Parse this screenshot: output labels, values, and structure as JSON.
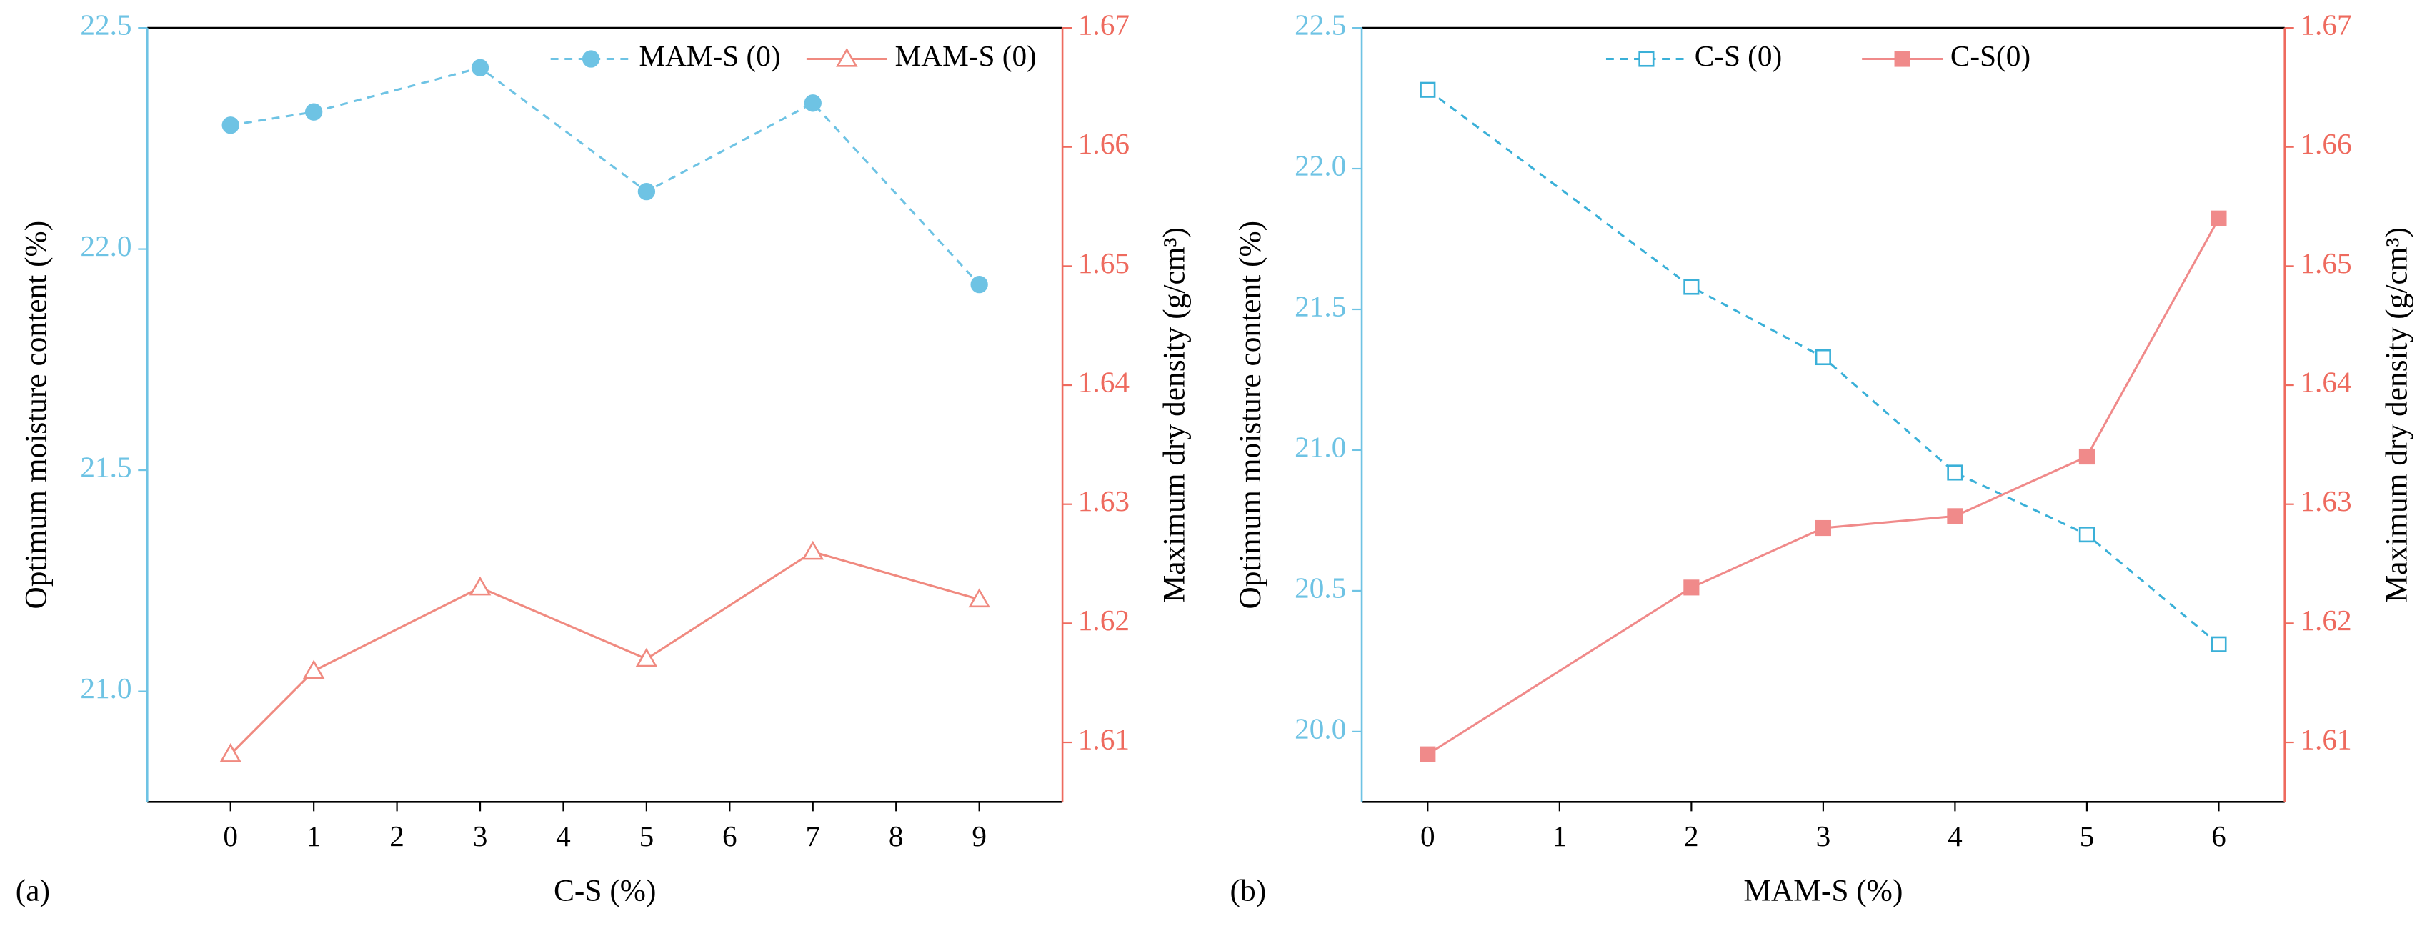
{
  "chart_data": [
    {
      "type": "line",
      "panel_label": "(a)",
      "xlabel": "C-S (%)",
      "ylabel": "Optimum moisture content (%)",
      "y2label": "Maximum dry density (g/cm³)",
      "x": [
        0,
        1,
        3,
        5,
        7,
        9
      ],
      "xlim": [
        -1,
        10
      ],
      "xticks": [
        0,
        1,
        2,
        3,
        4,
        5,
        6,
        7,
        8,
        9
      ],
      "ylim": [
        20.75,
        22.5
      ],
      "yticks": [
        {
          "value": 21,
          "label": "21.0"
        },
        21.5,
        {
          "value": 22,
          "label": "22.0"
        },
        22.5
      ],
      "y2lim": [
        1.605,
        1.67
      ],
      "y2ticks": [
        1.61,
        1.62,
        1.63,
        1.64,
        1.65,
        1.66,
        1.67
      ],
      "legend": "upper right",
      "series": [
        {
          "name": "MAM-S (0)",
          "color": "#6ec3e4",
          "marker": "circle",
          "dash": true,
          "values": [
            22.28,
            22.31,
            22.41,
            22.13,
            22.33,
            21.92
          ]
        },
        {
          "name": "MAM-S (0)",
          "color": "#f08a80",
          "marker": "triangle-open",
          "dash": false,
          "axis": "y2",
          "values": [
            1.609,
            1.616,
            1.623,
            1.617,
            1.626,
            1.622
          ]
        }
      ]
    },
    {
      "type": "line",
      "panel_label": "(b)",
      "xlabel": "MAM-S (%)",
      "ylabel": "Optimum moisture content (%)",
      "y2label": "Maximum dry density (g/cm³)",
      "x": [
        0,
        2,
        3,
        4,
        5,
        6
      ],
      "xlim": [
        -0.5,
        6.5
      ],
      "xticks": [
        0,
        1,
        2,
        3,
        4,
        5,
        6
      ],
      "ylim": [
        19.75,
        22.5
      ],
      "yticks": [
        {
          "value": 20,
          "label": "20.0"
        },
        20.5,
        {
          "value": 21,
          "label": "21.0"
        },
        21.5,
        {
          "value": 22,
          "label": "22.0"
        },
        22.5
      ],
      "y2lim": [
        1.605,
        1.67
      ],
      "y2ticks": [
        1.61,
        1.62,
        1.63,
        1.64,
        1.65,
        1.66,
        1.67
      ],
      "legend": "upper center",
      "series": [
        {
          "name": "C-S (0)",
          "color": "#3ab0d8",
          "marker": "square-open",
          "dash": true,
          "values": [
            22.28,
            21.58,
            21.33,
            20.92,
            20.7,
            20.31
          ]
        },
        {
          "name": "C-S(0)",
          "color": "#f08a8a",
          "marker": "square",
          "dash": false,
          "axis": "y2",
          "values": [
            1.609,
            1.623,
            1.628,
            1.629,
            1.634,
            1.654
          ]
        }
      ]
    }
  ]
}
